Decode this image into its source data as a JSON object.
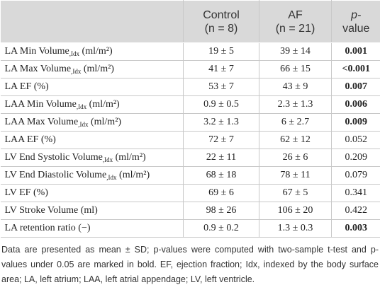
{
  "table": {
    "header": [
      {},
      {
        "name": "Control",
        "n": "(n = 8)"
      },
      {
        "name": "AF",
        "n": "(n = 21)"
      },
      {
        "italic": "p-",
        "rest": "value"
      }
    ],
    "rows": [
      {
        "label": "LA Min Volume",
        "sub": ",Idx",
        "unit": " (ml/m²)",
        "control": "19 ± 5",
        "af": "39 ± 14",
        "p": "0.001",
        "bold": true
      },
      {
        "label": "LA Max Volume",
        "sub": ",Idx",
        "unit": " (ml/m²)",
        "control": "41 ± 7",
        "af": "66 ± 15",
        "p": "<0.001",
        "bold": true
      },
      {
        "label": "LA EF (%)",
        "control": "53 ± 7",
        "af": "43 ± 9",
        "p": "0.007",
        "bold": true
      },
      {
        "label": "LAA Min Volume",
        "sub": ",Idx",
        "unit": " (ml/m²)",
        "control": "0.9 ± 0.5",
        "af": "2.3 ± 1.3",
        "p": "0.006",
        "bold": true
      },
      {
        "label": "LAA Max Volume",
        "sub": ",Idx",
        "unit": " (ml/m²)",
        "control": "3.2 ± 1.3",
        "af": "6 ± 2.7",
        "p": "0.009",
        "bold": true
      },
      {
        "label": "LAA EF (%)",
        "control": "72 ± 7",
        "af": "62 ± 12",
        "p": "0.052",
        "bold": false
      },
      {
        "label": "LV End Systolic Volume",
        "sub": ",Idx",
        "unit": " (ml/m²)",
        "control": "22 ± 11",
        "af": "26 ± 6",
        "p": "0.209",
        "bold": false
      },
      {
        "label": "LV End Diastolic Volume",
        "sub": ",Idx",
        "unit": " (ml/m²)",
        "control": "68 ± 18",
        "af": "78 ± 11",
        "p": "0.079",
        "bold": false
      },
      {
        "label": "LV EF (%)",
        "control": "69 ± 6",
        "af": "67 ± 5",
        "p": "0.341",
        "bold": false
      },
      {
        "label": "LV Stroke Volume (ml)",
        "control": "98 ± 26",
        "af": "106 ± 20",
        "p": "0.422",
        "bold": false
      },
      {
        "label": "LA retention ratio (−)",
        "control": "0.9 ± 0.2",
        "af": "1.3 ± 0.3",
        "p": "0.003",
        "bold": true
      }
    ]
  },
  "footnote": "Data are presented as mean ± SD; p-values were computed with two-sample t-test and p-values under 0.05 are marked in bold. EF, ejection fraction; Idx, indexed by the body surface area; LA, left atrium; LAA, left atrial appendage; LV, left ventricle."
}
